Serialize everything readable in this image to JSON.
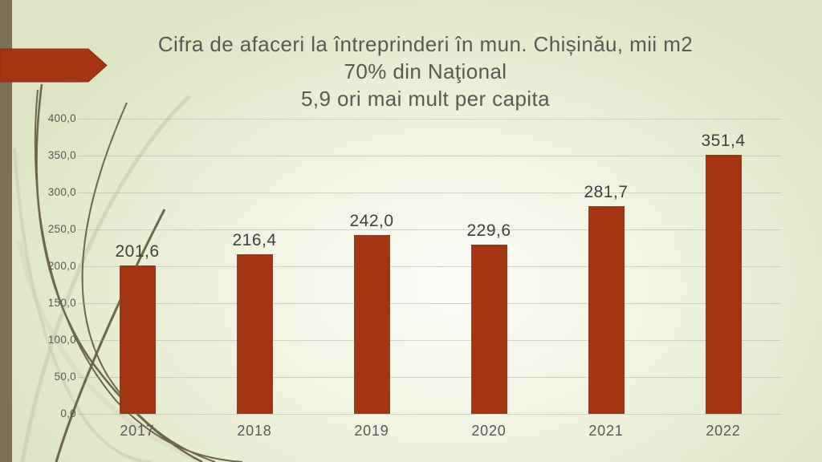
{
  "slide": {
    "title_lines": [
      "Cifra de afaceri la întreprinderi în mun. Chișinău, mii m2",
      "70% din Naţional",
      "5,9 ori mai mult per capita"
    ]
  },
  "colors": {
    "accent_red": "#a53413",
    "stripe_olive": "#7b7255",
    "curve_dark": "#6e6649",
    "curve_light": "#c7c6ac",
    "background_edge": "#dde4c5",
    "background_center": "#fbfcf8",
    "text_gray": "#595956",
    "value_label_gray": "#404040"
  },
  "decor": {
    "stripe": "vertical-stripe",
    "arrow_icon": "right-arrow-banner",
    "curves": "swoosh-curves"
  },
  "chart_data": {
    "type": "bar",
    "title": "",
    "categories": [
      "2017",
      "2018",
      "2019",
      "2020",
      "2021",
      "2022"
    ],
    "values": [
      201.6,
      216.4,
      242.0,
      229.6,
      281.7,
      351.4
    ],
    "value_labels": [
      "201,6",
      "216,4",
      "242,0",
      "229,6",
      "281,7",
      "351,4"
    ],
    "bar_color": "#a53413",
    "xlabel": "",
    "ylabel": "",
    "ylim": [
      0,
      400
    ],
    "grid": true,
    "legend": "none",
    "y_ticks": [
      {
        "value": 0,
        "label": "0,0"
      },
      {
        "value": 50,
        "label": "50,0"
      },
      {
        "value": 100,
        "label": "100,0"
      },
      {
        "value": 150,
        "label": "150,0"
      },
      {
        "value": 200,
        "label": "200,0"
      },
      {
        "value": 250,
        "label": "250,0"
      },
      {
        "value": 300,
        "label": "300,0"
      },
      {
        "value": 350,
        "label": "350,0"
      },
      {
        "value": 400,
        "label": "400,0"
      }
    ]
  }
}
